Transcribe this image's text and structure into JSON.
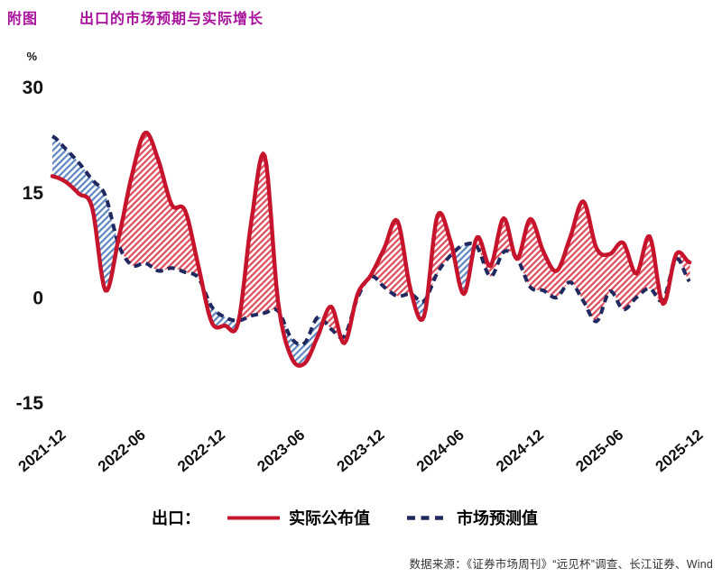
{
  "title": {
    "tag": "附图",
    "text": "出口的市场预期与实际增长"
  },
  "axis": {
    "unit": "%"
  },
  "legend": {
    "prefix": "出口：",
    "actual": "实际公布值",
    "forecast": "市场预测值"
  },
  "source": "数据来源：《证券市场周刊》“远见杯”调查、长江证券、Wind",
  "colors": {
    "title": "#a8119c",
    "actual_line": "#c6142d",
    "actual_hatch": "#dd5260",
    "forecast_line": "#20295f",
    "forecast_hatch": "#5d86c0",
    "axis_text": "#111111",
    "legend_text": "#000000",
    "source_text": "#333333"
  },
  "chart_data": {
    "type": "line",
    "title": "出口的市场预期与实际增长",
    "xlabel": "",
    "ylabel": "%",
    "grid": false,
    "legend_position": "bottom",
    "frequency": "monthly",
    "ylim": [
      -16.5,
      31
    ],
    "y_ticks": [
      30,
      15,
      0,
      -15
    ],
    "x_tick_labels": [
      "2021-12",
      "2022-06",
      "2022-12",
      "2023-06",
      "2023-12",
      "2024-06",
      "2024-12",
      "2025-06",
      "2025-12"
    ],
    "x_tick_month_index": [
      0,
      6,
      12,
      18,
      24,
      30,
      36,
      42,
      48
    ],
    "x": [
      "2021-12",
      "2022-01",
      "2022-02",
      "2022-03",
      "2022-04",
      "2022-05",
      "2022-06",
      "2022-07",
      "2022-08",
      "2022-09",
      "2022-10",
      "2022-11",
      "2022-12",
      "2023-01",
      "2023-02",
      "2023-03",
      "2023-04",
      "2023-05",
      "2023-06",
      "2023-07",
      "2023-08",
      "2023-09",
      "2023-10",
      "2023-11",
      "2023-12",
      "2024-01",
      "2024-02",
      "2024-03",
      "2024-04",
      "2024-05",
      "2024-06",
      "2024-07",
      "2024-08",
      "2024-09",
      "2024-10",
      "2024-11",
      "2024-12",
      "2025-01",
      "2025-02",
      "2025-03",
      "2025-04",
      "2025-05",
      "2025-06",
      "2025-07",
      "2025-08",
      "2025-09",
      "2025-10",
      "2025-11",
      "2025-12"
    ],
    "series": [
      {
        "name": "实际公布值",
        "style": "solid",
        "color": "#c6142d",
        "values": [
          17.3,
          16.5,
          14.8,
          12.8,
          1.0,
          8.5,
          17.5,
          23.5,
          19.5,
          13.2,
          12.4,
          4.5,
          -3.5,
          -4.0,
          -3.6,
          11.0,
          20.2,
          -0.5,
          -8.5,
          -9.4,
          -5.5,
          -1.3,
          -6.5,
          0.5,
          3.2,
          7.0,
          10.9,
          1.0,
          -2.7,
          11.6,
          8.0,
          0.5,
          8.6,
          4.5,
          11.3,
          5.5,
          11.2,
          6.5,
          3.8,
          8.5,
          13.7,
          7.0,
          6.2,
          7.8,
          3.4,
          8.7,
          -0.9,
          6.2,
          5.0
        ]
      },
      {
        "name": "市场预测值",
        "style": "dashed",
        "color": "#20295f",
        "values": [
          23.0,
          21.2,
          19.2,
          16.8,
          14.5,
          7.5,
          4.6,
          4.9,
          3.8,
          4.2,
          3.6,
          2.8,
          -1.3,
          -2.8,
          -3.3,
          -2.6,
          -2.2,
          -1.9,
          -5.8,
          -6.5,
          -2.8,
          -4.5,
          -5.5,
          0.0,
          3.0,
          1.5,
          0.2,
          0.5,
          -0.5,
          3.5,
          6.0,
          7.5,
          7.2,
          3.0,
          6.5,
          5.6,
          1.5,
          1.0,
          0.0,
          2.2,
          -0.5,
          -3.4,
          0.9,
          -1.7,
          0.0,
          1.3,
          -0.4,
          5.5,
          2.3
        ]
      }
    ],
    "fills": {
      "actual_above_forecast": "red-diagonal-hatch",
      "forecast_above_actual": "blue-diagonal-hatch"
    }
  }
}
